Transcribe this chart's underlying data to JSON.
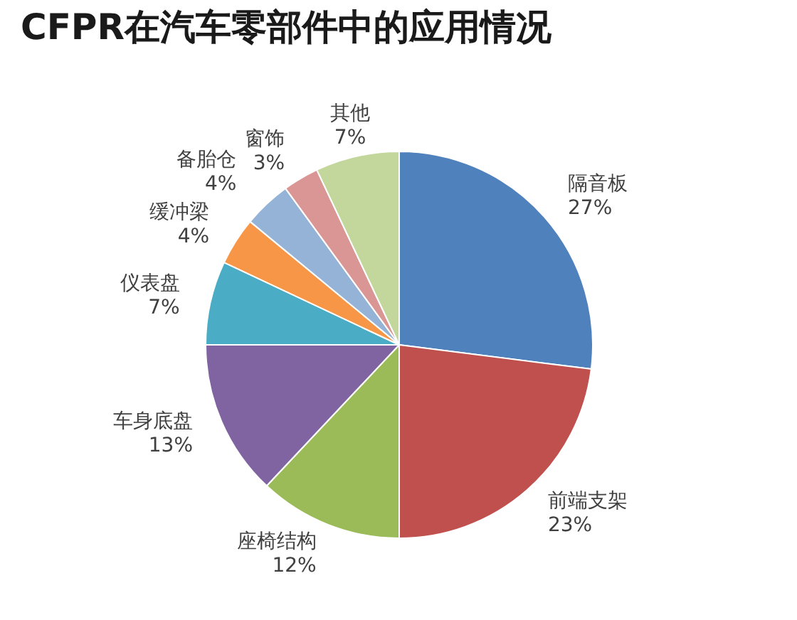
{
  "chart_data": {
    "type": "pie",
    "title": "CFPR在汽车零部件中的应用情况",
    "categories": [
      "隔音板",
      "前端支架",
      "座椅结构",
      "车身底盘",
      "仪表盘",
      "缓冲梁",
      "备胎仓",
      "窗饰",
      "其他"
    ],
    "values": [
      27,
      23,
      12,
      13,
      7,
      4,
      4,
      3,
      7
    ],
    "colors": [
      "#4f81bd",
      "#c0504d",
      "#9bbb59",
      "#8064a2",
      "#4bacc6",
      "#f79646",
      "#95b3d7",
      "#d99694",
      "#c3d69b"
    ],
    "value_labels": [
      "27%",
      "23%",
      "12%",
      "13%",
      "7%",
      "4%",
      "4%",
      "3%",
      "7%"
    ]
  }
}
